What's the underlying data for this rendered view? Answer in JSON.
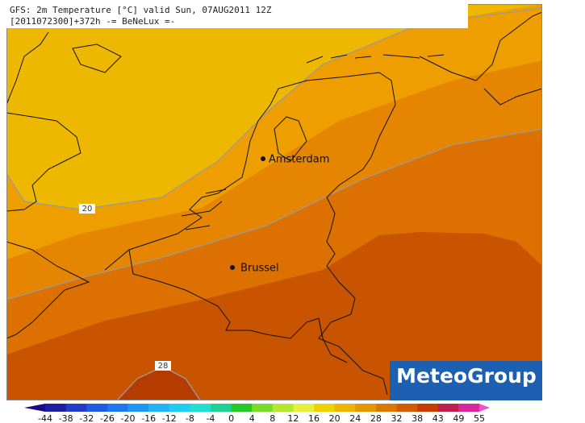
{
  "header": {
    "line1": "GFS: 2m Temperature [°C] valid Sun, 07AUG2011 12Z",
    "line2": "[2011072300]+372h -= BeNeLux =-"
  },
  "cities": [
    {
      "label": "Amsterdam"
    },
    {
      "label": "Brussel"
    }
  ],
  "contour_labels": [
    "20",
    "28"
  ],
  "logo": "MeteoGroup",
  "legend": {
    "ticks": [
      "-44",
      "-38",
      "-32",
      "-26",
      "-20",
      "-16",
      "-12",
      "-8",
      "-4",
      "0",
      "4",
      "8",
      "12",
      "16",
      "20",
      "24",
      "28",
      "32",
      "38",
      "43",
      "49",
      "55"
    ],
    "colors": [
      "#1a0a8c",
      "#1e1ea0",
      "#1e3cc8",
      "#1e5ae6",
      "#1e78f0",
      "#1e96f5",
      "#1eb4f5",
      "#1ecdf0",
      "#1ee1d2",
      "#1ed296",
      "#28c828",
      "#78dc28",
      "#b4e632",
      "#e6f03c",
      "#f0d200",
      "#f0b400",
      "#e69600",
      "#dc7800",
      "#d25a00",
      "#c83c00",
      "#be1e50",
      "#dc28a0",
      "#f050c8"
    ]
  }
}
